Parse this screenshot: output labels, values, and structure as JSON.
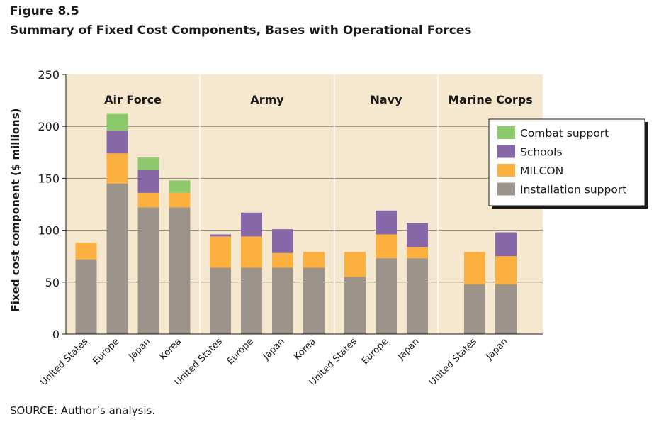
{
  "figure_label": "Figure 8.5",
  "figure_title": "Summary of Fixed Cost Components, Bases with Operational Forces",
  "source_note": "SOURCE: Author’s analysis.",
  "colors": {
    "background": "#f5e8ce",
    "installation_support": "#9c948a",
    "milcon": "#fbb040",
    "schools": "#8767a8",
    "combat_support": "#8cc96a"
  },
  "chart_data": {
    "type": "bar",
    "stacked": true,
    "title": "",
    "xlabel": "",
    "ylabel": "Fixed cost component ($ millions)",
    "ylim": [
      0,
      250
    ],
    "yticks": [
      0,
      50,
      100,
      150,
      200,
      250
    ],
    "grid": true,
    "legend_position": "top-right",
    "groups": [
      {
        "name": "Air Force",
        "categories": [
          "United States",
          "Europe",
          "Japan",
          "Korea"
        ]
      },
      {
        "name": "Army",
        "categories": [
          "United States",
          "Europe",
          "Japan",
          "Korea"
        ]
      },
      {
        "name": "Navy",
        "categories": [
          "United States",
          "Europe",
          "Japan"
        ]
      },
      {
        "name": "Marine Corps",
        "categories": [
          "United States",
          "Japan"
        ]
      }
    ],
    "series": [
      {
        "name": "Installation support",
        "color": "#9c948a",
        "values": [
          72,
          145,
          122,
          122,
          64,
          64,
          64,
          64,
          55,
          73,
          73,
          48,
          48
        ]
      },
      {
        "name": "MILCON",
        "color": "#fbb040",
        "values": [
          16,
          29,
          14,
          14,
          30,
          30,
          14,
          15,
          24,
          23,
          11,
          31,
          27
        ]
      },
      {
        "name": "Schools",
        "color": "#8767a8",
        "values": [
          0,
          22,
          22,
          0,
          2,
          23,
          23,
          0,
          0,
          23,
          23,
          0,
          23
        ]
      },
      {
        "name": "Combat support",
        "color": "#8cc96a",
        "values": [
          0,
          16,
          12,
          12,
          0,
          0,
          0,
          0,
          0,
          0,
          0,
          0,
          0
        ]
      }
    ],
    "legend_order": [
      "Combat support",
      "Schools",
      "MILCON",
      "Installation support"
    ]
  }
}
